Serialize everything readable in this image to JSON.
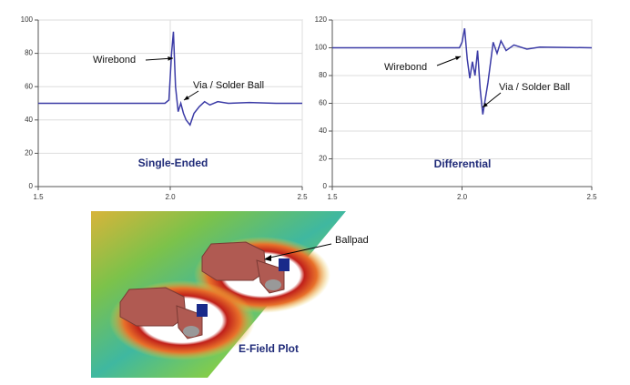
{
  "chart_data": [
    {
      "type": "line",
      "title": "Single-Ended",
      "x": [
        1.5,
        1.98,
        1.995,
        2.005,
        2.012,
        2.02,
        2.03,
        2.04,
        2.05,
        2.06,
        2.075,
        2.09,
        2.11,
        2.13,
        2.15,
        2.18,
        2.22,
        2.3,
        2.4,
        2.5
      ],
      "series": [
        {
          "color": "#3b3ba6",
          "values": [
            50,
            50,
            52,
            80,
            93,
            60,
            45,
            50,
            44,
            40,
            37,
            44,
            48,
            51,
            49,
            51,
            50,
            50.5,
            50,
            50
          ]
        }
      ],
      "xlim": [
        1.5,
        2.5
      ],
      "xticks": [
        1.5,
        {
          "value": 2.0,
          "label": "2.0"
        },
        2.5
      ],
      "ylim": [
        0,
        100
      ],
      "yticks": [
        0,
        20,
        40,
        60,
        80,
        100
      ],
      "grid": true,
      "annotations": [
        "Wirebond",
        "Via / Solder Ball"
      ]
    },
    {
      "type": "line",
      "title": "Differential",
      "x": [
        1.5,
        1.99,
        2.0,
        2.01,
        2.02,
        2.03,
        2.04,
        2.05,
        2.06,
        2.07,
        2.08,
        2.1,
        2.12,
        2.135,
        2.15,
        2.17,
        2.2,
        2.25,
        2.3,
        2.5
      ],
      "series": [
        {
          "color": "#3b3ba6",
          "values": [
            100,
            100,
            104,
            114,
            92,
            78,
            90,
            80,
            98,
            70,
            52,
            75,
            104,
            96,
            105,
            98,
            102,
            99,
            100.5,
            100
          ]
        }
      ],
      "xlim": [
        1.5,
        2.5
      ],
      "xticks": [
        1.5,
        {
          "value": 2.0,
          "label": "2.0"
        },
        2.5
      ],
      "ylim": [
        0,
        120
      ],
      "yticks": [
        0,
        20,
        40,
        60,
        80,
        100,
        120
      ],
      "grid": true,
      "annotations": [
        "Wirebond",
        "Via / Solder Ball"
      ]
    }
  ],
  "image": {
    "annotation": "Ballpad",
    "caption": "E-Field Plot"
  }
}
